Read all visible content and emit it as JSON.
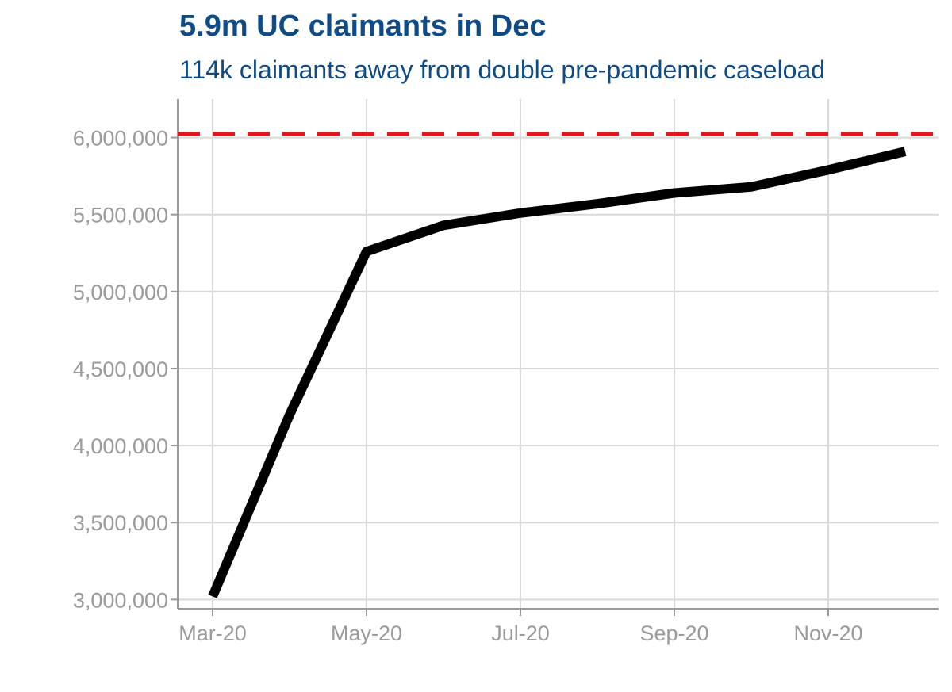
{
  "chart_data": {
    "type": "line",
    "title": "5.9m UC claimants in Dec",
    "subtitle": "114k claimants away from double pre-pandemic caseload",
    "xlabel": "",
    "ylabel": "",
    "x": [
      "2020-03",
      "2020-04",
      "2020-05",
      "2020-06",
      "2020-07",
      "2020-08",
      "2020-09",
      "2020-10",
      "2020-11",
      "2020-12"
    ],
    "x_tick_labels": [
      "Mar-20",
      "May-20",
      "Jul-20",
      "Sep-20",
      "Nov-20"
    ],
    "x_tick_positions": [
      "2020-03",
      "2020-05",
      "2020-07",
      "2020-09",
      "2020-11"
    ],
    "y_tick_values": [
      3000000,
      3500000,
      4000000,
      4500000,
      5000000,
      5500000,
      6000000
    ],
    "y_tick_labels": [
      "3,000,000",
      "3,500,000",
      "4,000,000",
      "4,500,000",
      "5,000,000",
      "5,500,000",
      "6,000,000"
    ],
    "ylim": [
      2940000,
      6250000
    ],
    "grid": true,
    "series": [
      {
        "color": "#000000",
        "values": [
          3020000,
          4200000,
          5260000,
          5430000,
          5510000,
          5570000,
          5640000,
          5680000,
          5790000,
          5910000
        ]
      }
    ],
    "reference_line": {
      "y": 6024000,
      "style": "dashed",
      "color": "#e8141c"
    }
  }
}
